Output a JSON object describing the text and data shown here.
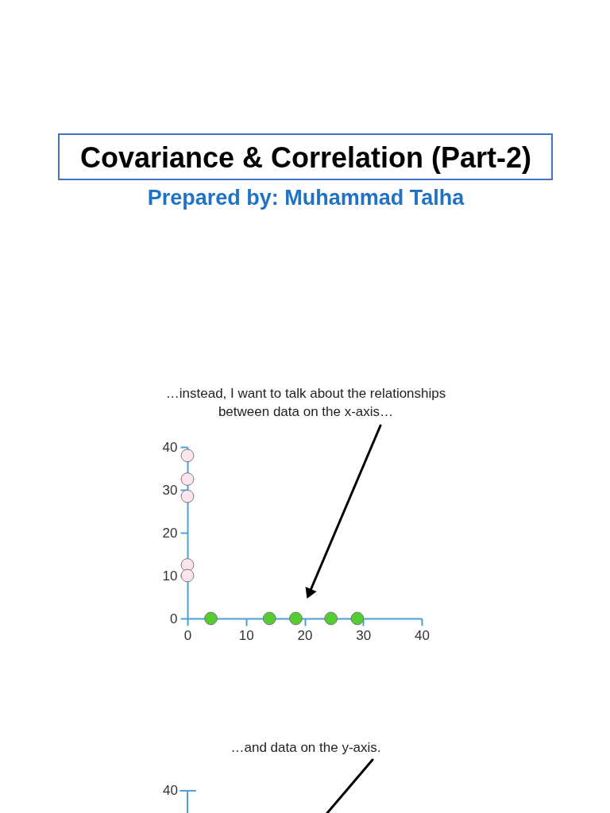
{
  "chart_data": [
    {
      "type": "other",
      "title": "Covariance & Correlation (Part-2)",
      "subtitle": "Prepared by: Muhammad Talha"
    },
    {
      "type": "scatter",
      "annotations": [
        "…instead, I want to talk about the relationships between data on the x-axis…"
      ],
      "xlim": [
        0,
        40
      ],
      "ylim": [
        0,
        40
      ],
      "xticks": [
        0,
        10,
        20,
        30,
        40
      ],
      "yticks": [
        0,
        10,
        20,
        30,
        40
      ],
      "marker": "circle",
      "series": [
        {
          "color": "#fce4ef",
          "x": [
            0,
            0,
            0,
            0,
            0
          ],
          "values": [
            38,
            32.5,
            28.5,
            12.5,
            10
          ]
        },
        {
          "color": "#55cc33",
          "x": [
            4,
            14,
            18.5,
            24.5,
            29
          ],
          "values": [
            0,
            0,
            0,
            0,
            0
          ]
        }
      ]
    },
    {
      "type": "other",
      "title": "…and data on the y-axis.",
      "annotations": [
        "40"
      ]
    }
  ]
}
